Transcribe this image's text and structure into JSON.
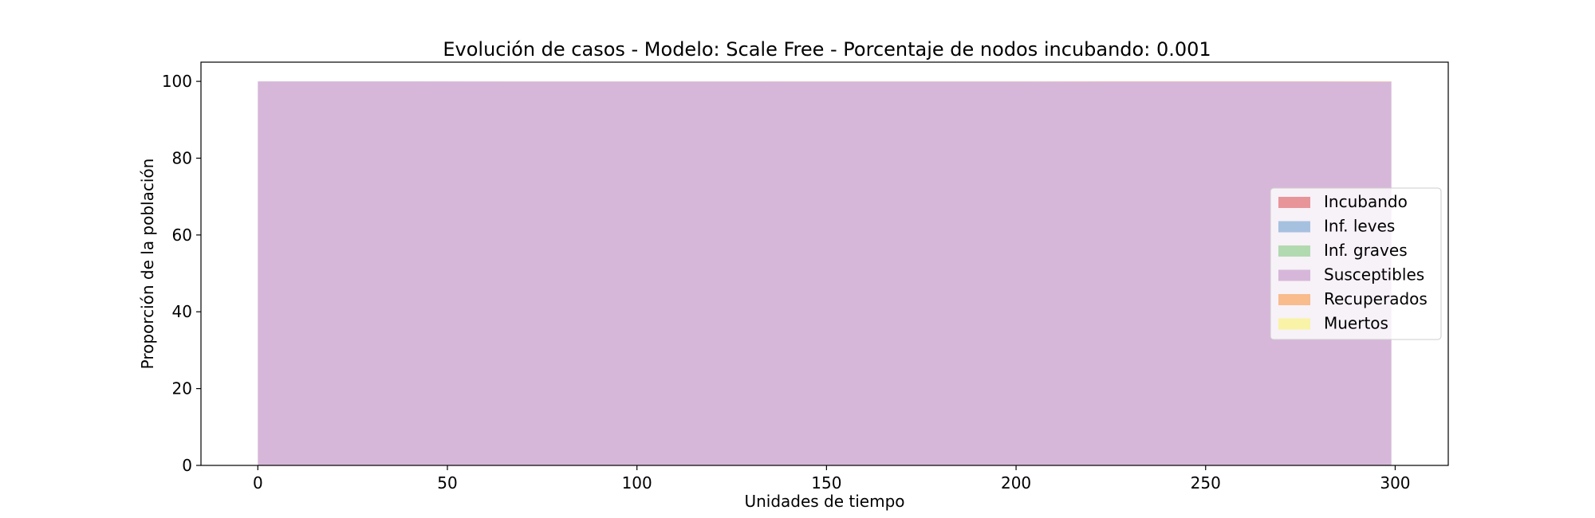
{
  "chart_data": {
    "type": "area",
    "stacked": true,
    "title": "Evolución de casos - Modelo: Scale Free - Porcentaje de nodos incubando: 0.001",
    "xlabel": "Unidades de tiempo",
    "ylabel": "Proporción de la población",
    "xlim": [
      -15,
      314
    ],
    "ylim": [
      0,
      105
    ],
    "xticks": [
      0,
      50,
      100,
      150,
      200,
      250,
      300
    ],
    "yticks": [
      0,
      20,
      40,
      60,
      80,
      100
    ],
    "x_range": [
      0,
      299
    ],
    "grid": false,
    "legend_position": "center-right",
    "series": [
      {
        "name": "Incubando",
        "color": "#e8959a",
        "values": [
          [
            0,
            0.1
          ],
          [
            299,
            0.0
          ]
        ]
      },
      {
        "name": "Inf. leves",
        "color": "#a6c1df",
        "values": [
          [
            0,
            0.0
          ],
          [
            299,
            0.0
          ]
        ]
      },
      {
        "name": "Inf. graves",
        "color": "#b2dab0",
        "values": [
          [
            0,
            0.0
          ],
          [
            299,
            0.0
          ]
        ]
      },
      {
        "name": "Susceptibles",
        "color": "#d6b7d9",
        "values": [
          [
            0,
            99.9
          ],
          [
            299,
            99.9
          ]
        ]
      },
      {
        "name": "Recuperados",
        "color": "#f8bc8d",
        "values": [
          [
            0,
            0.0
          ],
          [
            299,
            0.1
          ]
        ]
      },
      {
        "name": "Muertos",
        "color": "#f8f3a6",
        "values": [
          [
            0,
            0.0
          ],
          [
            299,
            0.0
          ]
        ]
      }
    ]
  }
}
